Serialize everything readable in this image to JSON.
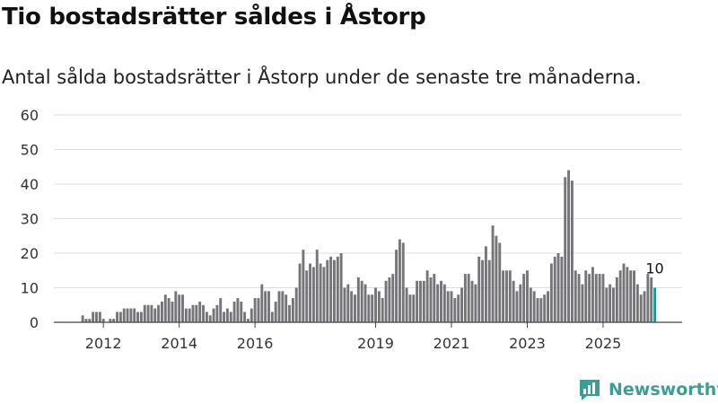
{
  "header": {
    "title": "Tio bostadsrätter såldes i Åstorp",
    "subtitle": "Antal sålda bostadsrätter i Åstorp under de senaste tre månaderna."
  },
  "brand": {
    "name": "Newsworthy"
  },
  "colors": {
    "bar": "#747479",
    "highlight": "#169c94",
    "grid": "#dddddd",
    "brand": "#3a9e96"
  },
  "chart_data": {
    "type": "bar",
    "title": "Tio bostadsrätter såldes i Åstorp",
    "xlabel": "",
    "ylabel": "",
    "ylim": [
      0,
      60
    ],
    "yticks": [
      "0",
      "10",
      "20",
      "30",
      "40",
      "50",
      "60"
    ],
    "xticks": [
      "2012",
      "2014",
      "2016",
      "2019",
      "2021",
      "2023",
      "2025"
    ],
    "xticks_bar_index": [
      8,
      30,
      52,
      87,
      109,
      131,
      153
    ],
    "highlight_label": "10",
    "values": [
      0,
      0,
      2,
      1,
      1,
      3,
      3,
      3,
      1,
      0,
      1,
      1,
      3,
      3,
      4,
      4,
      4,
      4,
      3,
      3,
      5,
      5,
      5,
      4,
      5,
      6,
      8,
      7,
      6,
      9,
      8,
      8,
      4,
      4,
      5,
      5,
      6,
      5,
      3,
      2,
      4,
      5,
      7,
      3,
      4,
      3,
      6,
      7,
      6,
      3,
      1,
      4,
      7,
      7,
      11,
      9,
      9,
      3,
      6,
      9,
      9,
      8,
      5,
      7,
      10,
      17,
      21,
      15,
      17,
      16,
      21,
      17,
      16,
      18,
      19,
      18,
      19,
      20,
      10,
      11,
      9,
      8,
      13,
      12,
      11,
      8,
      8,
      10,
      9,
      7,
      12,
      13,
      14,
      21,
      24,
      23,
      10,
      8,
      8,
      12,
      12,
      12,
      15,
      13,
      14,
      11,
      12,
      11,
      9,
      9,
      7,
      8,
      10,
      14,
      14,
      12,
      11,
      19,
      18,
      22,
      18,
      28,
      25,
      23,
      15,
      15,
      15,
      12,
      9,
      11,
      14,
      15,
      10,
      9,
      7,
      7,
      8,
      9,
      17,
      19,
      20,
      19,
      42,
      44,
      41,
      15,
      14,
      11,
      15,
      14,
      16,
      14,
      14,
      14,
      10,
      11,
      10,
      13,
      15,
      17,
      16,
      15,
      15,
      11,
      8,
      9,
      14,
      13,
      10
    ]
  }
}
